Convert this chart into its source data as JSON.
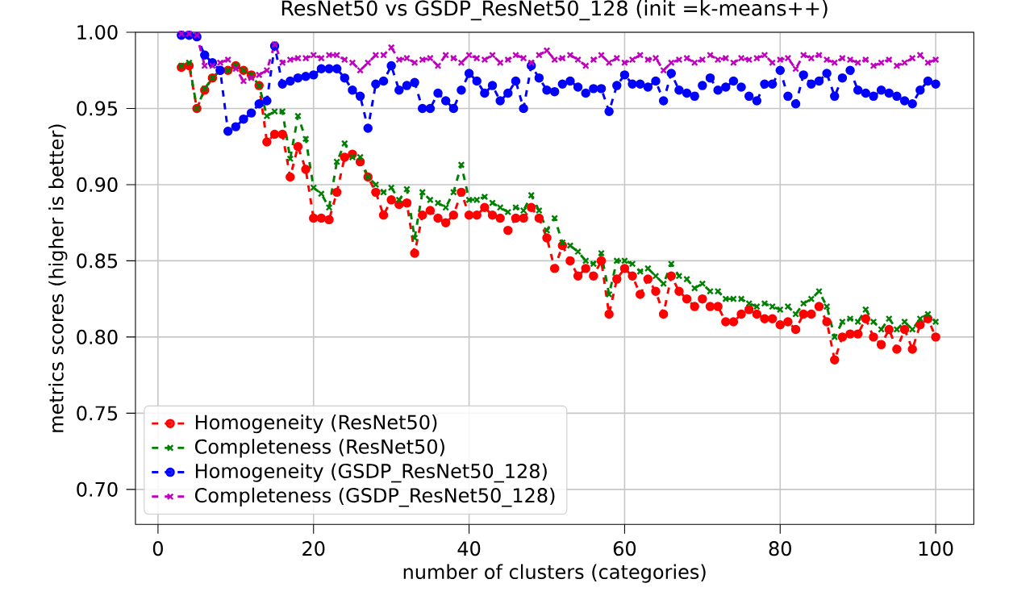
{
  "chart_data": {
    "type": "line",
    "title": "ResNet50 vs GSDP_ResNet50_128 (init =k-means++)",
    "xlabel": "number of clusters (categories)",
    "ylabel": "metrics scores (higher is better)",
    "x": [
      3,
      4,
      5,
      6,
      7,
      8,
      9,
      10,
      11,
      12,
      13,
      14,
      15,
      16,
      17,
      18,
      19,
      20,
      21,
      22,
      23,
      24,
      25,
      26,
      27,
      28,
      29,
      30,
      31,
      32,
      33,
      34,
      35,
      36,
      37,
      38,
      39,
      40,
      41,
      42,
      43,
      44,
      45,
      46,
      47,
      48,
      49,
      50,
      51,
      52,
      53,
      54,
      55,
      56,
      57,
      58,
      59,
      60,
      61,
      62,
      63,
      64,
      65,
      66,
      67,
      68,
      69,
      70,
      71,
      72,
      73,
      74,
      75,
      76,
      77,
      78,
      79,
      80,
      81,
      82,
      83,
      84,
      85,
      86,
      87,
      88,
      89,
      90,
      91,
      92,
      93,
      94,
      95,
      96,
      97,
      98,
      99,
      100
    ],
    "xlim": [
      -2.9,
      104.9
    ],
    "ylim": [
      0.677,
      1.0
    ],
    "xticks": [
      0,
      20,
      40,
      60,
      80,
      100
    ],
    "yticks": [
      {
        "value": 0.7,
        "label": "0.70"
      },
      {
        "value": 0.75,
        "label": "0.75"
      },
      {
        "value": 0.8,
        "label": "0.80"
      },
      {
        "value": 0.85,
        "label": "0.85"
      },
      {
        "value": 0.9,
        "label": "0.90"
      },
      {
        "value": 0.95,
        "label": "0.95"
      },
      {
        "value": 1.0,
        "label": "1.00"
      }
    ],
    "grid": true,
    "legend": "bottom left",
    "line_style": "dashed",
    "series": [
      {
        "name": "Homogeneity (ResNet50)",
        "color": "#ff0000",
        "marker": "circle",
        "values": [
          0.977,
          0.978,
          0.95,
          0.962,
          0.97,
          0.975,
          0.975,
          0.978,
          0.975,
          0.972,
          0.965,
          0.928,
          0.933,
          0.933,
          0.905,
          0.925,
          0.91,
          0.878,
          0.878,
          0.877,
          0.895,
          0.918,
          0.92,
          0.915,
          0.905,
          0.895,
          0.88,
          0.89,
          0.887,
          0.888,
          0.855,
          0.88,
          0.883,
          0.878,
          0.875,
          0.88,
          0.895,
          0.88,
          0.88,
          0.885,
          0.88,
          0.878,
          0.87,
          0.878,
          0.878,
          0.885,
          0.878,
          0.865,
          0.845,
          0.86,
          0.85,
          0.84,
          0.845,
          0.84,
          0.85,
          0.815,
          0.838,
          0.845,
          0.84,
          0.828,
          0.838,
          0.83,
          0.815,
          0.84,
          0.83,
          0.825,
          0.82,
          0.825,
          0.82,
          0.82,
          0.81,
          0.81,
          0.815,
          0.818,
          0.815,
          0.812,
          0.812,
          0.808,
          0.81,
          0.805,
          0.815,
          0.815,
          0.82,
          0.81,
          0.785,
          0.8,
          0.802,
          0.802,
          0.812,
          0.8,
          0.795,
          0.805,
          0.792,
          0.805,
          0.792,
          0.808,
          0.812,
          0.8
        ]
      },
      {
        "name": "Completeness (ResNet50)",
        "color": "#008000",
        "marker": "cross",
        "values": [
          0.978,
          0.98,
          0.95,
          0.963,
          0.97,
          0.975,
          0.975,
          0.978,
          0.975,
          0.972,
          0.965,
          0.945,
          0.948,
          0.948,
          0.917,
          0.945,
          0.93,
          0.898,
          0.894,
          0.885,
          0.915,
          0.927,
          0.918,
          0.918,
          0.905,
          0.9,
          0.895,
          0.898,
          0.89,
          0.897,
          0.865,
          0.895,
          0.89,
          0.888,
          0.885,
          0.895,
          0.913,
          0.89,
          0.89,
          0.892,
          0.888,
          0.885,
          0.882,
          0.885,
          0.883,
          0.893,
          0.883,
          0.87,
          0.878,
          0.862,
          0.86,
          0.856,
          0.85,
          0.848,
          0.855,
          0.828,
          0.85,
          0.85,
          0.848,
          0.843,
          0.845,
          0.84,
          0.835,
          0.848,
          0.84,
          0.838,
          0.832,
          0.835,
          0.83,
          0.83,
          0.825,
          0.825,
          0.825,
          0.822,
          0.82,
          0.822,
          0.82,
          0.818,
          0.82,
          0.815,
          0.822,
          0.825,
          0.83,
          0.82,
          0.8,
          0.81,
          0.812,
          0.81,
          0.818,
          0.81,
          0.805,
          0.812,
          0.805,
          0.81,
          0.805,
          0.812,
          0.815,
          0.81
        ]
      },
      {
        "name": "Homogeneity (GSDP_ResNet50_128)",
        "color": "#0000ff",
        "marker": "circle",
        "values": [
          0.998,
          0.998,
          0.997,
          0.985,
          0.98,
          0.975,
          0.935,
          0.938,
          0.943,
          0.947,
          0.953,
          0.955,
          0.991,
          0.966,
          0.968,
          0.97,
          0.971,
          0.972,
          0.976,
          0.976,
          0.976,
          0.97,
          0.962,
          0.958,
          0.937,
          0.966,
          0.968,
          0.978,
          0.962,
          0.965,
          0.967,
          0.95,
          0.95,
          0.96,
          0.955,
          0.95,
          0.962,
          0.973,
          0.968,
          0.96,
          0.965,
          0.955,
          0.96,
          0.968,
          0.95,
          0.978,
          0.97,
          0.962,
          0.961,
          0.966,
          0.968,
          0.964,
          0.96,
          0.963,
          0.963,
          0.948,
          0.965,
          0.972,
          0.966,
          0.966,
          0.964,
          0.968,
          0.955,
          0.973,
          0.962,
          0.96,
          0.958,
          0.965,
          0.97,
          0.962,
          0.964,
          0.968,
          0.964,
          0.958,
          0.955,
          0.966,
          0.966,
          0.975,
          0.958,
          0.953,
          0.972,
          0.966,
          0.968,
          0.973,
          0.958,
          0.97,
          0.975,
          0.962,
          0.96,
          0.958,
          0.962,
          0.96,
          0.958,
          0.955,
          0.953,
          0.962,
          0.968,
          0.966
        ]
      },
      {
        "name": "Completeness (GSDP_ResNet50_128)",
        "color": "#bf00bf",
        "marker": "cross",
        "values": [
          0.999,
          0.999,
          0.998,
          0.978,
          0.978,
          0.98,
          0.982,
          0.976,
          0.968,
          0.97,
          0.972,
          0.975,
          0.992,
          0.98,
          0.982,
          0.983,
          0.983,
          0.985,
          0.983,
          0.985,
          0.985,
          0.982,
          0.98,
          0.975,
          0.98,
          0.985,
          0.985,
          0.99,
          0.982,
          0.983,
          0.98,
          0.982,
          0.983,
          0.978,
          0.985,
          0.983,
          0.98,
          0.985,
          0.983,
          0.982,
          0.985,
          0.98,
          0.982,
          0.985,
          0.983,
          0.98,
          0.985,
          0.988,
          0.982,
          0.983,
          0.985,
          0.982,
          0.978,
          0.982,
          0.985,
          0.98,
          0.983,
          0.98,
          0.982,
          0.985,
          0.982,
          0.983,
          0.975,
          0.98,
          0.982,
          0.983,
          0.98,
          0.982,
          0.985,
          0.982,
          0.983,
          0.98,
          0.983,
          0.982,
          0.983,
          0.985,
          0.98,
          0.982,
          0.983,
          0.976,
          0.985,
          0.983,
          0.985,
          0.982,
          0.98,
          0.983,
          0.982,
          0.98,
          0.982,
          0.978,
          0.98,
          0.982,
          0.978,
          0.98,
          0.983,
          0.985,
          0.98,
          0.982
        ]
      }
    ]
  }
}
